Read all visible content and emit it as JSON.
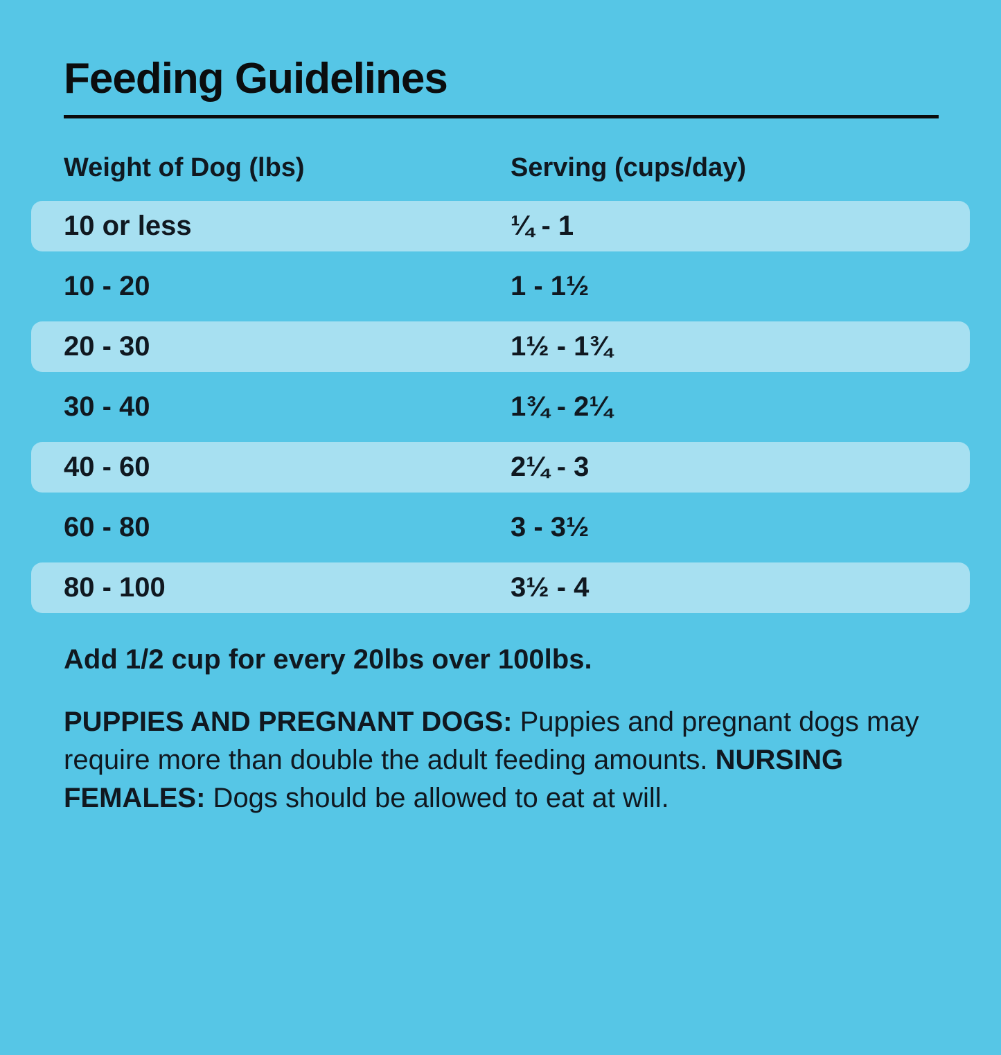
{
  "colors": {
    "bg": "#56C6E6",
    "stripe": "#A7E0F1",
    "ink": "#101820",
    "rule": "#0B0B0B"
  },
  "title": "Feeding Guidelines",
  "table": {
    "headers": {
      "weight": "Weight of Dog (lbs)",
      "serving": "Serving (cups/day)"
    },
    "rows": [
      {
        "weight": "10 or less",
        "serving": "¼ - 1"
      },
      {
        "weight": "10 - 20",
        "serving": "1 - 1½"
      },
      {
        "weight": "20 - 30",
        "serving": "1½ - 1¾"
      },
      {
        "weight": "30 - 40",
        "serving": "1¾ - 2¼"
      },
      {
        "weight": "40 - 60",
        "serving": "2¼ - 3"
      },
      {
        "weight": "60 - 80",
        "serving": "3 - 3½"
      },
      {
        "weight": "80 - 100",
        "serving": "3½ - 4"
      }
    ]
  },
  "notes": {
    "extra": "Add 1/2 cup for every 20lbs over 100lbs.",
    "para": {
      "bold1": "PUPPIES AND PREGNANT DOGS:",
      "text1": " Puppies and pregnant dogs may require more than double the adult feeding amounts. ",
      "bold2": "NURSING FEMALES:",
      "text2": " Dogs should be allowed to eat at will."
    }
  }
}
